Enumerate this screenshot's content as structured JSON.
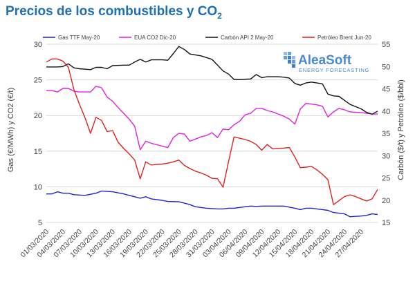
{
  "header": {
    "title_main": "Precios de los combustibles y CO",
    "title_sub": "2"
  },
  "logo": {
    "name": "AleaSoft",
    "tagline": "ENERGY FORECASTING"
  },
  "chart_data": {
    "type": "line",
    "title": "Precios de los combustibles y CO2",
    "ylabel_left": "Gas (€/MWh) y CO2 (€/t)",
    "ylabel_right": "Carbón ($/t) y Petróleo ($/bbl)",
    "xlabel": "",
    "ylim_left": [
      5,
      30
    ],
    "ylim_right": [
      15,
      55
    ],
    "yticks_left": [
      "5",
      "10",
      "15",
      "20",
      "25",
      "30"
    ],
    "yticks_right": [
      "15",
      "20",
      "25",
      "30",
      "35",
      "40",
      "45",
      "50",
      "55"
    ],
    "grid": "horizontal",
    "legend_position": "top",
    "xticks": [
      "01/03/2020",
      "04/03/2020",
      "07/03/2020",
      "10/03/2020",
      "13/03/2020",
      "16/03/2020",
      "19/03/2020",
      "22/03/2020",
      "25/03/2020",
      "28/03/2020",
      "31/03/2020",
      "03/04/2020",
      "06/04/2020",
      "09/04/2020",
      "12/04/2020",
      "15/04/2020",
      "18/04/2020",
      "21/04/2020",
      "24/04/2020",
      "27/04/2020"
    ],
    "series": [
      {
        "name": "Gas TTF May-20",
        "axis": "left",
        "color": "#1f1fd4",
        "points": [
          [
            0,
            9.0
          ],
          [
            1,
            9.0
          ],
          [
            2,
            9.3
          ],
          [
            3,
            9.1
          ],
          [
            4,
            9.1
          ],
          [
            5,
            8.9
          ],
          [
            7,
            8.8
          ],
          [
            9,
            9.1
          ],
          [
            10,
            9.4
          ],
          [
            12,
            9.3
          ],
          [
            14,
            9.0
          ],
          [
            15,
            8.8
          ],
          [
            16,
            8.6
          ],
          [
            17,
            8.4
          ],
          [
            18,
            8.6
          ],
          [
            19,
            8.3
          ],
          [
            21,
            8.1
          ],
          [
            22,
            7.95
          ],
          [
            24,
            7.9
          ],
          [
            25,
            7.7
          ],
          [
            26,
            7.5
          ],
          [
            27,
            7.2
          ],
          [
            28,
            7.1
          ],
          [
            29,
            7.0
          ],
          [
            31,
            6.9
          ],
          [
            32,
            6.9
          ],
          [
            33,
            7.0
          ],
          [
            34,
            7.0
          ],
          [
            35,
            7.1
          ],
          [
            36,
            7.2
          ],
          [
            37,
            7.3
          ],
          [
            38,
            7.25
          ],
          [
            39,
            7.3
          ],
          [
            41,
            7.3
          ],
          [
            43,
            7.3
          ],
          [
            45,
            7.0
          ],
          [
            46,
            6.8
          ],
          [
            47,
            7.0
          ],
          [
            48,
            7.0
          ],
          [
            49,
            6.9
          ],
          [
            50,
            6.8
          ],
          [
            51,
            6.7
          ],
          [
            52,
            6.4
          ],
          [
            53,
            6.3
          ],
          [
            54,
            6.2
          ],
          [
            55,
            5.8
          ],
          [
            57,
            5.9
          ],
          [
            58,
            6.0
          ],
          [
            59,
            6.2
          ],
          [
            60,
            6.1
          ]
        ]
      },
      {
        "name": "EUA CO2 Dic-20",
        "axis": "left",
        "color": "#e020e0",
        "points": [
          [
            0,
            23.5
          ],
          [
            1,
            23.5
          ],
          [
            2,
            23.3
          ],
          [
            3,
            23.8
          ],
          [
            4,
            23.8
          ],
          [
            5,
            23.4
          ],
          [
            6,
            23.3
          ],
          [
            7,
            23.3
          ],
          [
            8,
            23.3
          ],
          [
            9,
            24.1
          ],
          [
            10,
            23.9
          ],
          [
            11,
            22.6
          ],
          [
            12,
            22.0
          ],
          [
            13,
            21.1
          ],
          [
            14,
            20.3
          ],
          [
            15,
            19.5
          ],
          [
            16,
            18.5
          ],
          [
            17,
            15.2
          ],
          [
            18,
            16.4
          ],
          [
            19,
            16.1
          ],
          [
            20,
            15.9
          ],
          [
            21,
            15.7
          ],
          [
            22,
            15.5
          ],
          [
            23,
            16.9
          ],
          [
            24,
            17.5
          ],
          [
            25,
            17.4
          ],
          [
            26,
            16.4
          ],
          [
            27,
            16.7
          ],
          [
            28,
            17.0
          ],
          [
            29,
            17.2
          ],
          [
            30,
            17.6
          ],
          [
            31,
            16.9
          ],
          [
            32,
            18.1
          ],
          [
            33,
            18.0
          ],
          [
            34,
            18.7
          ],
          [
            35,
            19.2
          ],
          [
            36,
            20.1
          ],
          [
            37,
            20.3
          ],
          [
            38,
            21.0
          ],
          [
            39,
            21.0
          ],
          [
            40,
            20.7
          ],
          [
            41,
            20.5
          ],
          [
            42,
            20.2
          ],
          [
            43,
            19.9
          ],
          [
            44,
            19.5
          ],
          [
            45,
            18.8
          ],
          [
            46,
            20.9
          ],
          [
            47,
            21.7
          ],
          [
            48,
            21.6
          ],
          [
            49,
            21.5
          ],
          [
            50,
            21.3
          ],
          [
            51,
            19.8
          ],
          [
            52,
            20.5
          ],
          [
            53,
            21.0
          ],
          [
            54,
            20.8
          ],
          [
            55,
            20.5
          ],
          [
            57,
            20.4
          ],
          [
            58,
            20.3
          ],
          [
            59,
            20.2
          ],
          [
            60,
            20.2
          ]
        ]
      },
      {
        "name": "Carbón API 2 May-20",
        "axis": "right",
        "color": "#111111",
        "points": [
          [
            0,
            49.9
          ],
          [
            1,
            49.9
          ],
          [
            2,
            49.9
          ],
          [
            3,
            50.0
          ],
          [
            4,
            50.6
          ],
          [
            5,
            49.7
          ],
          [
            6,
            49.5
          ],
          [
            8,
            49.3
          ],
          [
            9,
            49.8
          ],
          [
            10,
            49.8
          ],
          [
            11,
            49.5
          ],
          [
            12,
            50.2
          ],
          [
            14,
            50.3
          ],
          [
            15,
            50.3
          ],
          [
            16,
            51.0
          ],
          [
            17,
            51.6
          ],
          [
            18,
            51.0
          ],
          [
            19,
            51.5
          ],
          [
            21,
            51.5
          ],
          [
            22,
            51.4
          ],
          [
            23,
            52.9
          ],
          [
            24,
            54.5
          ],
          [
            25,
            53.8
          ],
          [
            26,
            52.8
          ],
          [
            28,
            52.4
          ],
          [
            30,
            51.6
          ],
          [
            32,
            49.0
          ],
          [
            33,
            48.3
          ],
          [
            34,
            47.1
          ],
          [
            35,
            47.1
          ],
          [
            37,
            47.2
          ],
          [
            38,
            48.2
          ],
          [
            39,
            47.5
          ],
          [
            40,
            47.7
          ],
          [
            42,
            47.7
          ],
          [
            43,
            47.6
          ],
          [
            44,
            47.4
          ],
          [
            45,
            46.2
          ],
          [
            46,
            45.8
          ],
          [
            47,
            46.3
          ],
          [
            48,
            46.5
          ],
          [
            49,
            46.3
          ],
          [
            50,
            46.1
          ],
          [
            51,
            43.8
          ],
          [
            52,
            43.4
          ],
          [
            53,
            43.3
          ],
          [
            54,
            42.4
          ],
          [
            55,
            41.5
          ],
          [
            57,
            40.5
          ],
          [
            58,
            39.7
          ],
          [
            59,
            39.3
          ],
          [
            60,
            40.0
          ]
        ]
      },
      {
        "name": "Petróleo Brent Jun-20",
        "axis": "right",
        "color": "#e02020",
        "points": [
          [
            0,
            51.0
          ],
          [
            1,
            51.7
          ],
          [
            2,
            51.7
          ],
          [
            3,
            51.2
          ],
          [
            4,
            49.8
          ],
          [
            5,
            44.8
          ],
          [
            6,
            41.5
          ],
          [
            7,
            38.5
          ],
          [
            8,
            35.0
          ],
          [
            9,
            38.6
          ],
          [
            10,
            37.9
          ],
          [
            11,
            35.4
          ],
          [
            12,
            35.6
          ],
          [
            13,
            33.0
          ],
          [
            14,
            31.6
          ],
          [
            15,
            30.4
          ],
          [
            16,
            29.0
          ],
          [
            17,
            24.8
          ],
          [
            18,
            28.6
          ],
          [
            19,
            27.9
          ],
          [
            20,
            28.0
          ],
          [
            21,
            28.1
          ],
          [
            22,
            28.3
          ],
          [
            23,
            28.6
          ],
          [
            24,
            29.0
          ],
          [
            25,
            27.8
          ],
          [
            26,
            27.1
          ],
          [
            27,
            26.5
          ],
          [
            28,
            26.1
          ],
          [
            29,
            25.6
          ],
          [
            30,
            24.9
          ],
          [
            31,
            24.8
          ],
          [
            32,
            22.9
          ],
          [
            33,
            28.7
          ],
          [
            34,
            34.2
          ],
          [
            35,
            33.9
          ],
          [
            36,
            33.6
          ],
          [
            37,
            33.2
          ],
          [
            38,
            32.5
          ],
          [
            39,
            31.2
          ],
          [
            40,
            32.5
          ],
          [
            41,
            31.5
          ],
          [
            42,
            31.6
          ],
          [
            43,
            31.7
          ],
          [
            44,
            31.8
          ],
          [
            45,
            29.7
          ],
          [
            46,
            27.3
          ],
          [
            47,
            27.4
          ],
          [
            48,
            27.6
          ],
          [
            49,
            26.8
          ],
          [
            50,
            25.8
          ],
          [
            51,
            24.6
          ],
          [
            52,
            19.0
          ],
          [
            53,
            19.9
          ],
          [
            54,
            20.8
          ],
          [
            55,
            21.2
          ],
          [
            56,
            20.8
          ],
          [
            57,
            20.3
          ],
          [
            58,
            19.8
          ],
          [
            59,
            20.3
          ],
          [
            60,
            22.4
          ]
        ]
      }
    ]
  }
}
